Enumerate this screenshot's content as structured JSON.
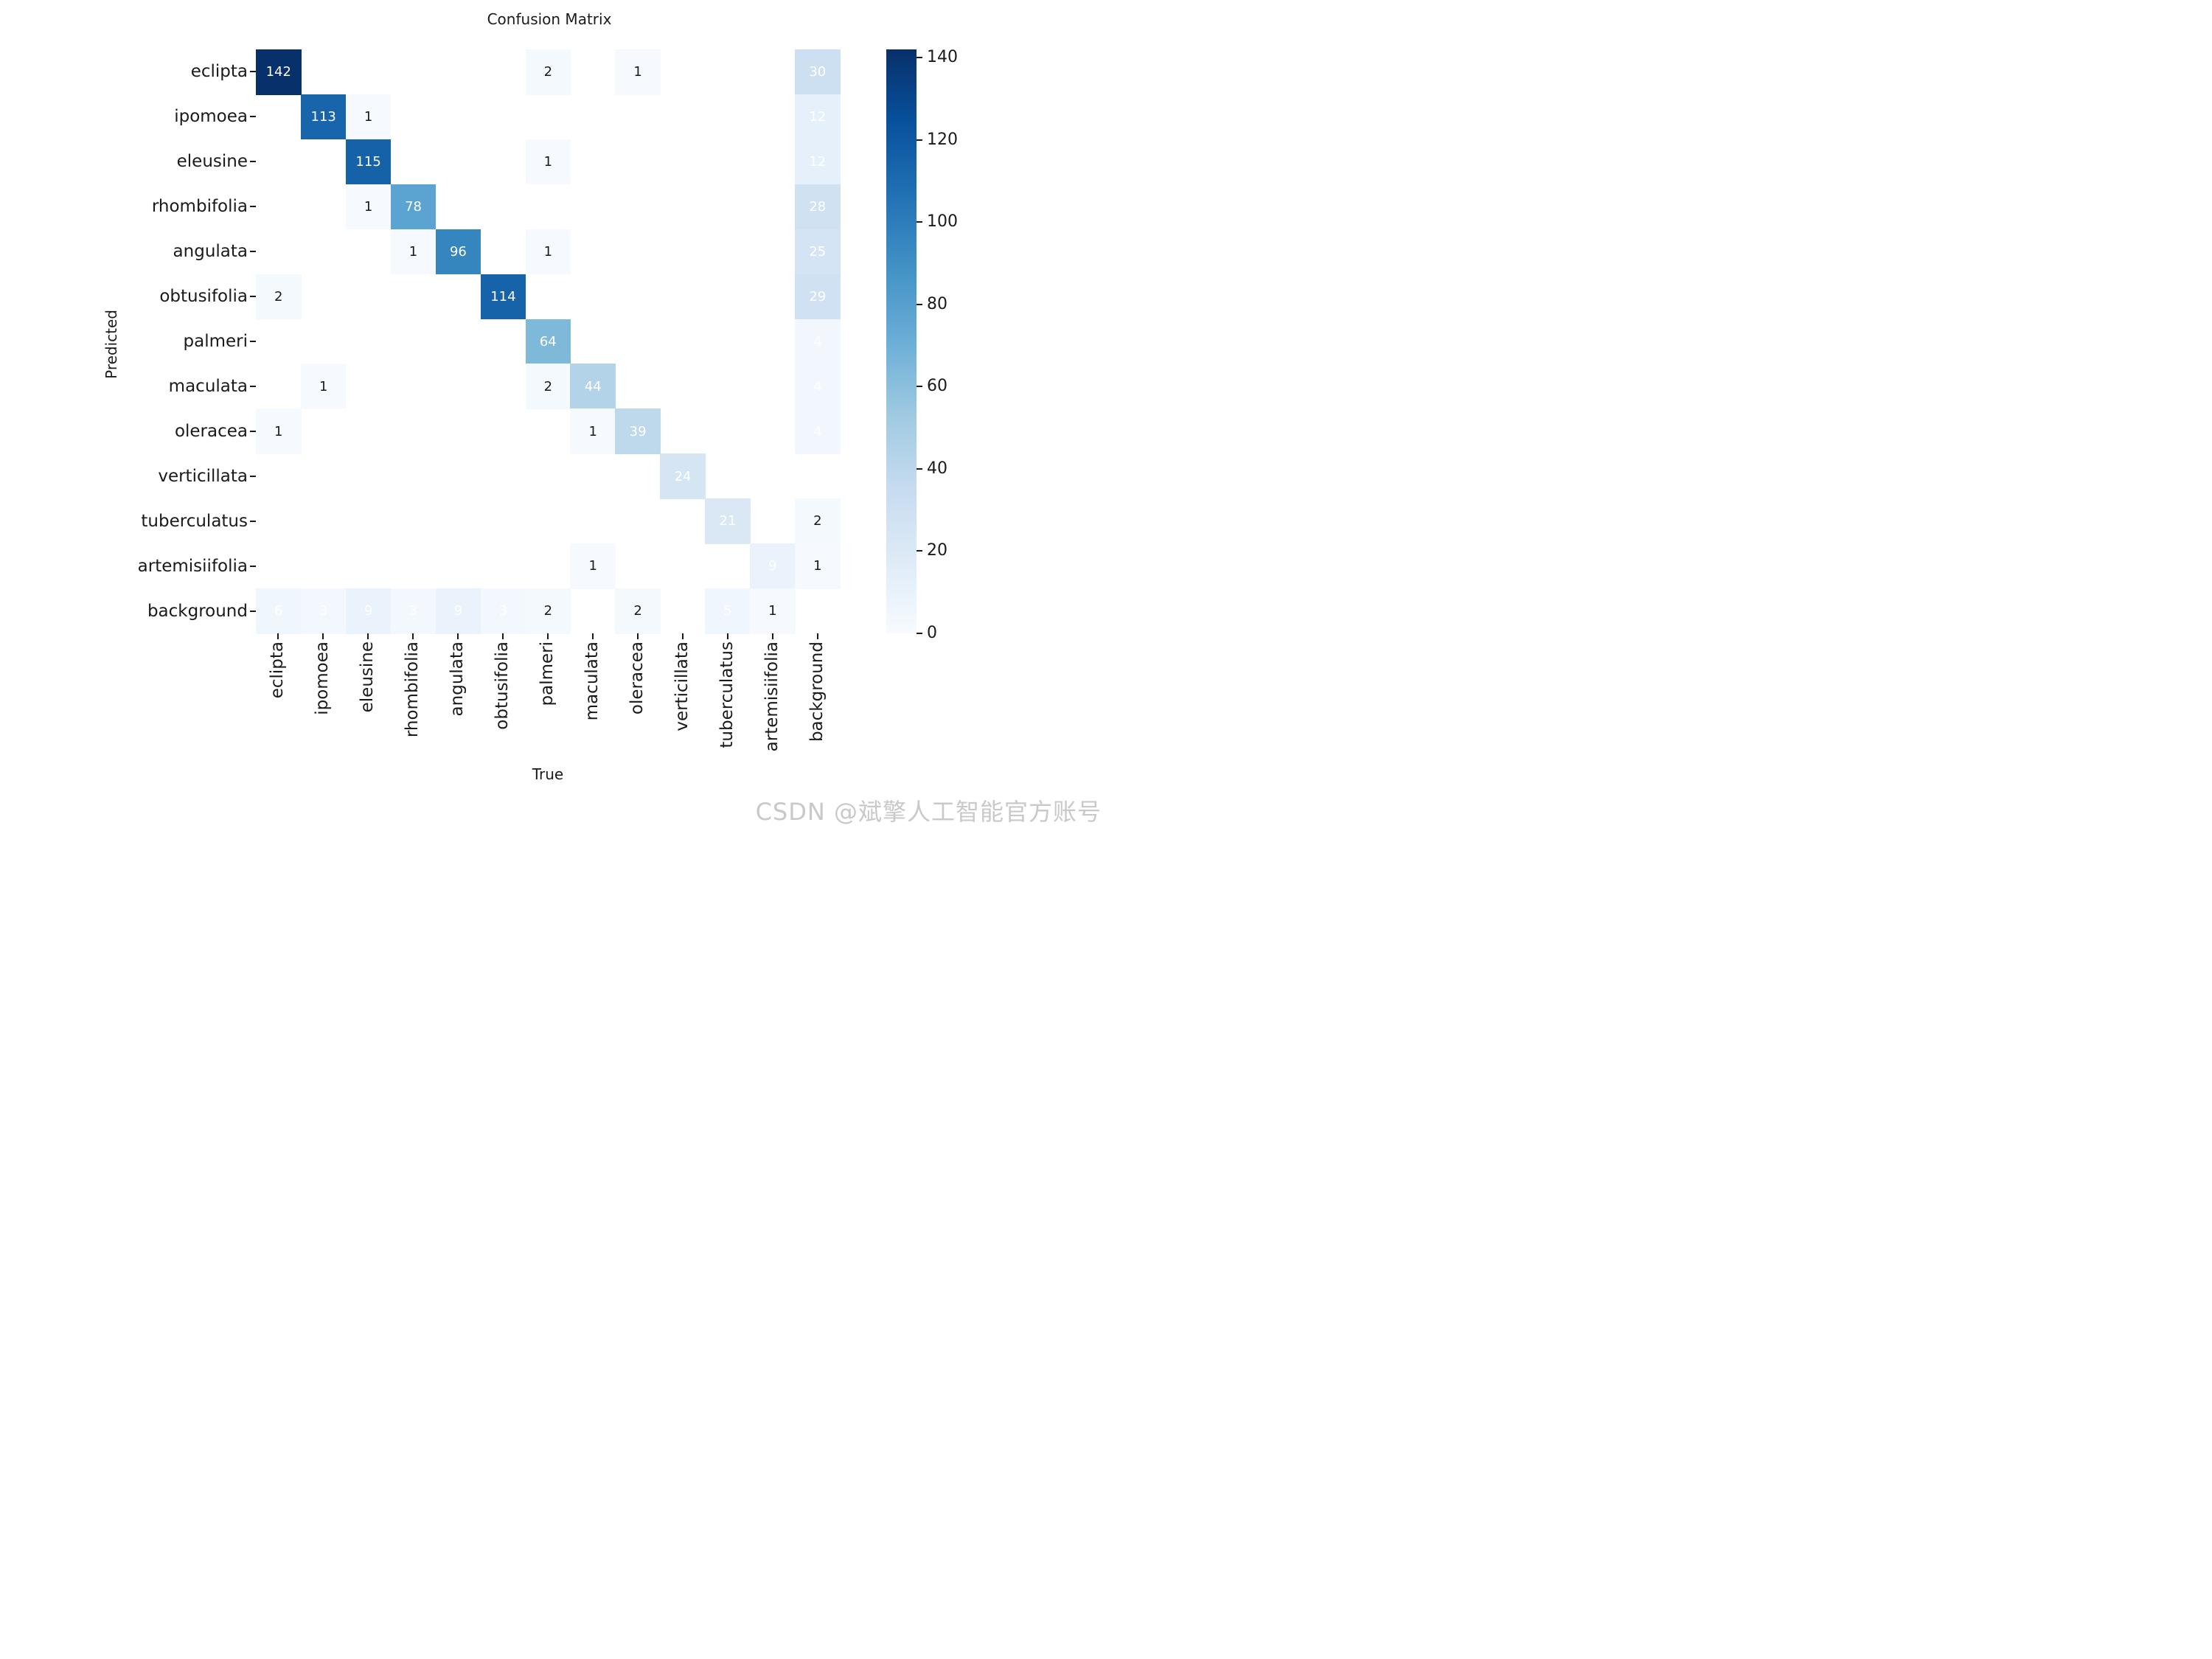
{
  "figure": {
    "watermark": "CSDN @斌擎人工智能官方账号"
  },
  "chart_data": {
    "type": "heatmap",
    "title": "Confusion Matrix",
    "xlabel": "True",
    "ylabel": "Predicted",
    "categories": [
      "eclipta",
      "ipomoea",
      "eleusine",
      "rhombifolia",
      "angulata",
      "obtusifolia",
      "palmeri",
      "maculata",
      "oleracea",
      "verticillata",
      "tuberculatus",
      "artemisiifolia",
      "background"
    ],
    "matrix": [
      [
        142,
        0,
        0,
        0,
        0,
        0,
        2,
        0,
        1,
        0,
        0,
        0,
        30
      ],
      [
        0,
        113,
        1,
        0,
        0,
        0,
        0,
        0,
        0,
        0,
        0,
        0,
        12
      ],
      [
        0,
        0,
        115,
        0,
        0,
        0,
        1,
        0,
        0,
        0,
        0,
        0,
        12
      ],
      [
        0,
        0,
        1,
        78,
        0,
        0,
        0,
        0,
        0,
        0,
        0,
        0,
        28
      ],
      [
        0,
        0,
        0,
        1,
        96,
        0,
        1,
        0,
        0,
        0,
        0,
        0,
        25
      ],
      [
        2,
        0,
        0,
        0,
        0,
        114,
        0,
        0,
        0,
        0,
        0,
        0,
        29
      ],
      [
        0,
        0,
        0,
        0,
        0,
        0,
        64,
        0,
        0,
        0,
        0,
        0,
        4
      ],
      [
        0,
        1,
        0,
        0,
        0,
        0,
        2,
        44,
        0,
        0,
        0,
        0,
        4
      ],
      [
        1,
        0,
        0,
        0,
        0,
        0,
        0,
        1,
        39,
        0,
        0,
        0,
        4
      ],
      [
        0,
        0,
        0,
        0,
        0,
        0,
        0,
        0,
        0,
        24,
        0,
        0,
        0
      ],
      [
        0,
        0,
        0,
        0,
        0,
        0,
        0,
        0,
        0,
        0,
        21,
        0,
        2
      ],
      [
        0,
        0,
        0,
        0,
        0,
        0,
        0,
        1,
        0,
        0,
        0,
        9,
        1
      ],
      [
        6,
        3,
        9,
        3,
        9,
        3,
        2,
        0,
        2,
        0,
        5,
        1,
        0
      ]
    ],
    "vmin": 0,
    "vmax": 142,
    "colormap": "Blues",
    "colorbar_ticks": [
      0,
      20,
      40,
      60,
      80,
      100,
      120,
      140
    ],
    "legend_position": "right",
    "grid": false,
    "annotation_rule": "nonzero values annotated; white text for values >= 3, dark text for 1-2",
    "empty_cell_color": "#ffffff",
    "accent_dark": "#08306b",
    "accent_light": "#f7fbff"
  }
}
